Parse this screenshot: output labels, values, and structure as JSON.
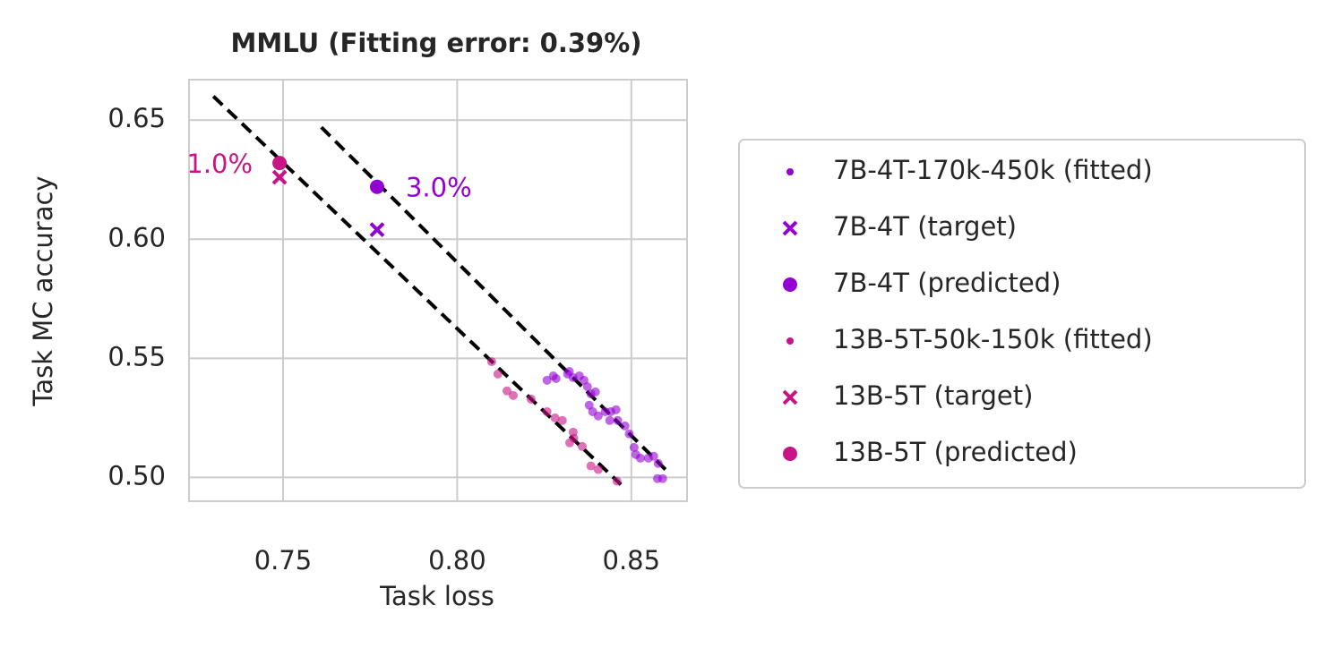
{
  "chart_data": {
    "type": "scatter",
    "title": "MMLU (Fitting error: 0.39%)",
    "x_label": "Task loss",
    "y_label": "Task MC accuracy",
    "xlim": [
      0.723,
      0.866
    ],
    "xticks": [
      0.75,
      0.8,
      0.85
    ],
    "ylim": [
      0.49,
      0.667
    ],
    "yticks": [
      0.5,
      0.55,
      0.6,
      0.65
    ],
    "grid": true,
    "legend": "outside right",
    "series": [
      {
        "name": "7B-4T-170k-450k (fitted)",
        "color": "#9400d3",
        "marker": "dot",
        "x": [
          0.8258,
          0.8276,
          0.8284,
          0.8317,
          0.8322,
          0.8333,
          0.8351,
          0.8364,
          0.8374,
          0.8384,
          0.8397,
          0.8379,
          0.8389,
          0.8405,
          0.8425,
          0.8441,
          0.8456,
          0.8438,
          0.8461,
          0.8482,
          0.8494,
          0.8508,
          0.8513,
          0.8526,
          0.8549,
          0.8564,
          0.8577,
          0.859,
          0.8575
        ],
        "values": [
          0.5408,
          0.5426,
          0.5415,
          0.5434,
          0.5445,
          0.5419,
          0.5426,
          0.5408,
          0.5381,
          0.5351,
          0.5359,
          0.5303,
          0.5276,
          0.5258,
          0.5276,
          0.5276,
          0.5284,
          0.5239,
          0.5239,
          0.5216,
          0.5183,
          0.5126,
          0.5096,
          0.5081,
          0.5081,
          0.5089,
          0.5059,
          0.4995,
          0.4995
        ]
      },
      {
        "name": "7B-4T (target)",
        "color": "#9400d3",
        "marker": "x",
        "x": [
          0.777
        ],
        "values": [
          0.604
        ]
      },
      {
        "name": "7B-4T (predicted)",
        "color": "#9400d3",
        "marker": "circle",
        "x": [
          0.777
        ],
        "values": [
          0.622
        ],
        "annotation": "3.0%"
      },
      {
        "name": "13B-5T-50k-150k (fitted)",
        "color": "#c71585",
        "marker": "dot",
        "x": [
          0.8099,
          0.8117,
          0.8143,
          0.8161,
          0.8212,
          0.8258,
          0.8281,
          0.8302,
          0.8333,
          0.8335,
          0.8359,
          0.8384,
          0.8405,
          0.8459,
          0.8323
        ],
        "values": [
          0.5486,
          0.5434,
          0.5363,
          0.5344,
          0.5329,
          0.5276,
          0.525,
          0.5239,
          0.519,
          0.5164,
          0.513,
          0.5048,
          0.5033,
          0.4984,
          0.5145
        ]
      },
      {
        "name": "13B-5T (target)",
        "color": "#c71585",
        "marker": "x",
        "x": [
          0.749
        ],
        "values": [
          0.626
        ]
      },
      {
        "name": "13B-5T (predicted)",
        "color": "#c71585",
        "marker": "circle",
        "x": [
          0.749
        ],
        "values": [
          0.632
        ],
        "annotation": "1.0%"
      }
    ],
    "fit_lines": [
      {
        "color": "#000000",
        "x": [
          0.73,
          0.847
        ],
        "values": [
          0.66,
          0.497
        ]
      },
      {
        "color": "#000000",
        "x": [
          0.761,
          0.86
        ],
        "values": [
          0.647,
          0.503
        ]
      }
    ]
  }
}
